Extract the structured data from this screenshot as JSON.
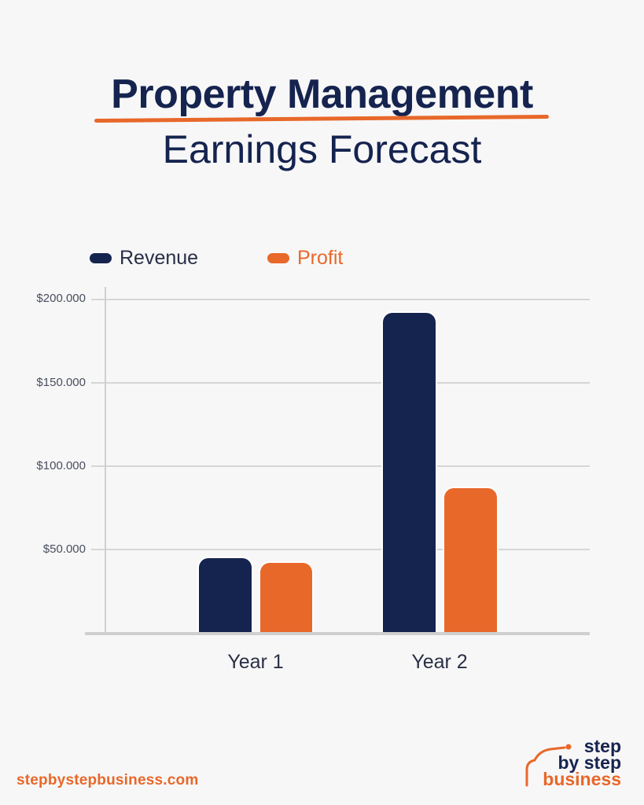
{
  "header": {
    "title_line1": "Property Management",
    "title_line2": "Earnings Forecast"
  },
  "legend": [
    {
      "label": "Revenue",
      "color": "#15234f"
    },
    {
      "label": "Profit",
      "color": "#e8682a"
    }
  ],
  "colors": {
    "navy": "#15234f",
    "orange": "#e8682a",
    "background": "#f7f7f7",
    "grid": "#d6d6d6"
  },
  "chart_data": {
    "type": "bar",
    "title": "Property Management Earnings Forecast",
    "xlabel": "",
    "ylabel": "",
    "categories": [
      "Year 1",
      "Year 2"
    ],
    "series": [
      {
        "name": "Revenue",
        "color": "#15234f",
        "values": [
          45000,
          192000
        ]
      },
      {
        "name": "Profit",
        "color": "#e8682a",
        "values": [
          42000,
          87000
        ]
      }
    ],
    "yticks": [
      50000,
      100000,
      150000,
      200000
    ],
    "ytick_labels": [
      "$50.000",
      "$100.000",
      "$150.000",
      "$200.000"
    ],
    "ylim": [
      0,
      200000
    ],
    "grid": true,
    "legend_position": "top-left"
  },
  "footer": {
    "url": "stepbystepbusiness.com",
    "logo_lines": [
      "step",
      "by step",
      "business"
    ]
  }
}
